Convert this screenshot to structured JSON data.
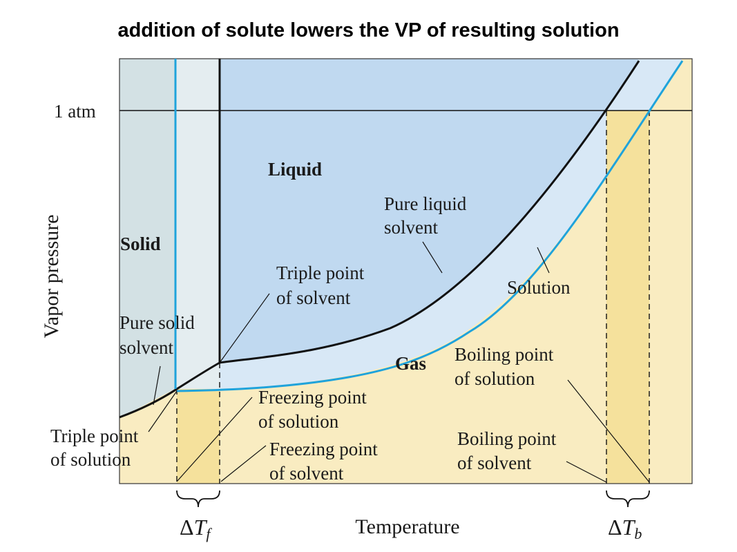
{
  "title": "addition of solute lowers the VP of resulting solution",
  "axes": {
    "y_label": "Vapor pressure",
    "x_label": "Temperature",
    "y_tick": "1 atm"
  },
  "regions": {
    "solid": "Solid",
    "liquid": "Liquid",
    "gas": "Gas"
  },
  "labels": {
    "pure_liquid_solvent": [
      "Pure liquid",
      "solvent"
    ],
    "solution": "Solution",
    "triple_point_solvent": [
      "Triple point",
      "of solvent"
    ],
    "pure_solid_solvent": [
      "Pure solid",
      "solvent"
    ],
    "triple_point_solution": [
      "Triple point",
      "of solution"
    ],
    "freezing_point_solution": [
      "Freezing point",
      "of solution"
    ],
    "freezing_point_solvent": [
      "Freezing point",
      "of solvent"
    ],
    "boiling_point_solution": [
      "Boiling point",
      "of solution"
    ],
    "boiling_point_solvent": [
      "Boiling point",
      "of solvent"
    ]
  },
  "delta": {
    "symbol": "Δ",
    "T": "T",
    "f_sub": "f",
    "b_sub": "b"
  },
  "colors": {
    "solid_region": "#d3e1e4",
    "solid_solution_band": "#e4edf0",
    "liquid_region": "#c0d9f0",
    "liquid_solution_band": "#d8e8f6",
    "gas_region": "#f9ecc1",
    "delta_band": "#f5e19c",
    "solvent_curve": "#111111",
    "solution_curve": "#1fa3db"
  }
}
